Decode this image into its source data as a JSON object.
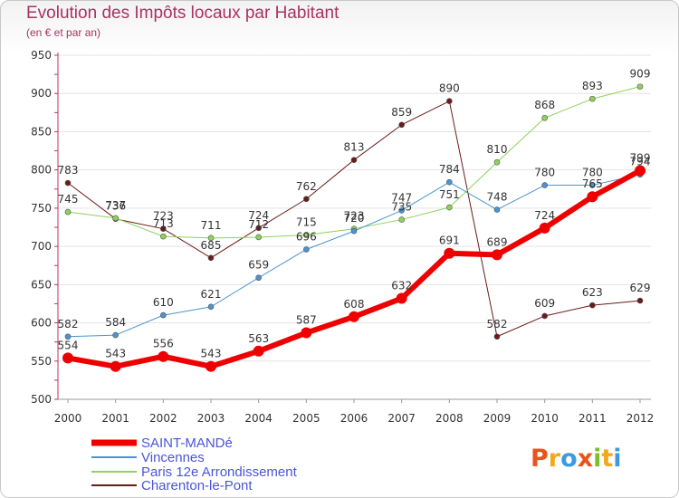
{
  "header": {
    "title": "Evolution des Impôts locaux par Habitant",
    "subtitle": "(en € et par an)"
  },
  "logo": {
    "letters": [
      "P",
      "r",
      "o",
      "x",
      "i",
      "t",
      "i"
    ],
    "colors": [
      "#e8541c",
      "#f2a81d",
      "#3c9be0",
      "#e8541c",
      "#7bbf2a",
      "#f2a81d",
      "#3c9be0"
    ]
  },
  "chart_data": {
    "type": "line",
    "title": "Evolution des Impôts locaux par Habitant",
    "subtitle": "(en € et par an)",
    "xlabel": "",
    "ylabel": "",
    "categories": [
      "2000",
      "2001",
      "2002",
      "2003",
      "2004",
      "2005",
      "2006",
      "2007",
      "2008",
      "2009",
      "2010",
      "2011",
      "2012"
    ],
    "ylim": [
      500,
      950
    ],
    "yticks": [
      500,
      550,
      600,
      650,
      700,
      750,
      800,
      850,
      900,
      950
    ],
    "grid": true,
    "legend_position": "bottom",
    "series": [
      {
        "name": "SAINT-MANDé",
        "color": "#ee0000",
        "width": 6,
        "values": [
          554,
          543,
          556,
          543,
          563,
          587,
          608,
          632,
          691,
          689,
          724,
          765,
          799
        ]
      },
      {
        "name": "Vincennes",
        "color": "#4a95cf",
        "width": 1,
        "values": [
          582,
          584,
          610,
          621,
          659,
          696,
          720,
          747,
          784,
          748,
          780,
          780,
          794
        ]
      },
      {
        "name": "Paris 12e  Arrondissement",
        "color": "#8ed25a",
        "width": 1,
        "values": [
          745,
          737,
          713,
          711,
          712,
          715,
          723,
          735,
          751,
          810,
          868,
          893,
          909
        ]
      },
      {
        "name": "Charenton-le-Pont",
        "color": "#6b1a1a",
        "width": 1,
        "values": [
          783,
          736,
          723,
          685,
          724,
          762,
          813,
          859,
          890,
          582,
          609,
          623,
          629
        ]
      }
    ]
  }
}
